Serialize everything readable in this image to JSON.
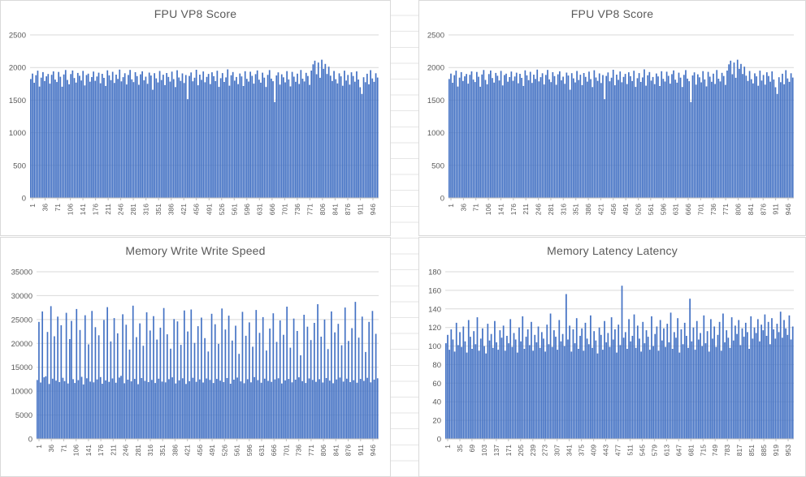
{
  "worksheet": {
    "background": "#ffffff",
    "gridline_color": "#e6e6e6"
  },
  "chart_data": [
    {
      "type": "bar",
      "title": "FPU VP8 Score",
      "bar_color": "#4472C4",
      "axis_text_color": "#595959",
      "gridline_color": "#d9d9d9",
      "ylim": [
        0,
        2500
      ],
      "yticks": [
        0,
        500,
        1000,
        1500,
        2000,
        2500
      ],
      "x_tick_labels": [
        "1",
        "36",
        "71",
        "106",
        "141",
        "176",
        "211",
        "246",
        "281",
        "316",
        "351",
        "386",
        "421",
        "456",
        "491",
        "526",
        "561",
        "596",
        "631",
        "666",
        "701",
        "736",
        "771",
        "806",
        "841",
        "876",
        "911",
        "946"
      ],
      "values": [
        1823,
        1907,
        1766,
        1882,
        1951,
        1708,
        1845,
        1929,
        1793,
        1864,
        1901,
        1752,
        1888,
        1940,
        1815,
        1777,
        1932,
        1858,
        1705,
        1893,
        1961,
        1810,
        1742,
        1899,
        1954,
        1838,
        1769,
        1917,
        1873,
        1801,
        1948,
        1725,
        1884,
        1906,
        1782,
        1853,
        1938,
        1796,
        1862,
        1920,
        1759,
        1903,
        1841,
        1718,
        1957,
        1879,
        1806,
        1934,
        1764,
        1891,
        1825,
        1968,
        1787,
        1852,
        1912,
        1740,
        1886,
        1963,
        1819,
        1776,
        1928,
        1868,
        1735,
        1895,
        1942,
        1804,
        1860,
        1750,
        1922,
        1877,
        1659,
        1913,
        1833,
        1771,
        1946,
        1808,
        1889,
        1730,
        1916,
        1856,
        1783,
        1936,
        1822,
        1700,
        1958,
        1847,
        1795,
        1909,
        1762,
        1884,
        1515,
        1871,
        1924,
        1788,
        1843,
        1965,
        1728,
        1890,
        1811,
        1939,
        1774,
        1856,
        1902,
        1746,
        1927,
        1867,
        1792,
        1950,
        1703,
        1836,
        1914,
        1778,
        1848,
        1971,
        1722,
        1881,
        1930,
        1799,
        1854,
        1745,
        1908,
        1863,
        1716,
        1943,
        1826,
        1785,
        1935,
        1872,
        1753,
        1898,
        1955,
        1814,
        1767,
        1921,
        1844,
        1702,
        1887,
        1960,
        1830,
        1790,
        1470,
        1878,
        1925,
        1738,
        1896,
        1850,
        1772,
        1944,
        1817,
        1710,
        1933,
        1859,
        1781,
        1905,
        1748,
        1962,
        1828,
        1786,
        1918,
        1870,
        1734,
        1953,
        2048,
        2105,
        1897,
        2076,
        1842,
        2120,
        1980,
        2055,
        1900,
        2012,
        1874,
        1793,
        1947,
        1821,
        1756,
        1910,
        1865,
        1720,
        1952,
        1800,
        1885,
        1737,
        1926,
        1869,
        1782,
        1940,
        1816,
        1698,
        1594,
        1851,
        1775,
        1904,
        1742,
        1959,
        1832,
        1780,
        1912,
        1846
      ]
    },
    {
      "type": "bar",
      "title": "FPU VP8 Score",
      "bar_color": "#4472C4",
      "axis_text_color": "#595959",
      "gridline_color": "#d9d9d9",
      "ylim": [
        0,
        2500
      ],
      "yticks": [
        0,
        500,
        1000,
        1500,
        2000,
        2500
      ],
      "x_tick_labels_from": 0,
      "values_from": 0
    },
    {
      "type": "bar",
      "title": "Memory Write Write Speed",
      "bar_color": "#4472C4",
      "axis_text_color": "#595959",
      "gridline_color": "#d9d9d9",
      "ylim": [
        0,
        35000
      ],
      "yticks": [
        0,
        5000,
        10000,
        15000,
        20000,
        25000,
        30000,
        35000
      ],
      "x_tick_labels_from": 0,
      "values": [
        12340,
        24500,
        11800,
        26700,
        12900,
        13100,
        22400,
        11500,
        27800,
        12600,
        21500,
        12200,
        25600,
        11900,
        23800,
        12800,
        12100,
        26400,
        11600,
        20900,
        24700,
        12500,
        11700,
        27200,
        12300,
        22800,
        13000,
        11400,
        25900,
        12700,
        19800,
        12000,
        26800,
        11850,
        23400,
        12450,
        21700,
        12950,
        11550,
        24900,
        12250,
        27600,
        11950,
        20400,
        12650,
        25300,
        11750,
        22100,
        12850,
        13200,
        26100,
        11650,
        23900,
        12400,
        18700,
        12050,
        27900,
        12550,
        21300,
        11450,
        24200,
        12750,
        19500,
        12150,
        26500,
        11900,
        22700,
        12350,
        25700,
        11700,
        20800,
        12600,
        23300,
        12000,
        27400,
        11850,
        21900,
        12500,
        18900,
        12900,
        25100,
        11600,
        24600,
        12250,
        19700,
        12700,
        26900,
        11500,
        22500,
        12100,
        27100,
        12800,
        20100,
        11950,
        23600,
        12450,
        25400,
        11800,
        21100,
        12650,
        18300,
        12350,
        26200,
        11700,
        24000,
        12550,
        19900,
        12200,
        27300,
        11900,
        22900,
        12750,
        25800,
        11550,
        20600,
        12400,
        23700,
        12850,
        17800,
        12050,
        26600,
        11650,
        21600,
        12500,
        24400,
        11850,
        19300,
        12950,
        27000,
        12300,
        22200,
        11750,
        25500,
        12600,
        18500,
        12150,
        23100,
        11950,
        26300,
        12450,
        20300,
        12700,
        24800,
        11600,
        21800,
        12250,
        27700,
        12550,
        19100,
        11850,
        25200,
        12400,
        22600,
        12900,
        17500,
        12100,
        26000,
        11700,
        23500,
        12650,
        20700,
        12350,
        24300,
        11950,
        28200,
        12500,
        21400,
        11800,
        25000,
        12750,
        18800,
        12200,
        26700,
        11650,
        22300,
        12450,
        24100,
        12850,
        19600,
        12000,
        27500,
        12600,
        20500,
        11900,
        23200,
        12300,
        28700,
        11750,
        21200,
        12550,
        25600,
        12150,
        18200,
        12800,
        24500,
        11850,
        26800,
        12400,
        22000,
        12700
      ]
    },
    {
      "type": "bar",
      "title": "Memory Latency Latency",
      "bar_color": "#4472C4",
      "axis_text_color": "#595959",
      "gridline_color": "#d9d9d9",
      "ylim": [
        0,
        180
      ],
      "yticks": [
        0,
        20,
        40,
        60,
        80,
        100,
        120,
        140,
        160,
        180
      ],
      "x_tick_labels": [
        "1",
        "35",
        "69",
        "103",
        "137",
        "171",
        "205",
        "239",
        "273",
        "307",
        "341",
        "375",
        "409",
        "443",
        "477",
        "511",
        "545",
        "579",
        "613",
        "647",
        "681",
        "715",
        "749",
        "783",
        "817",
        "851",
        "885",
        "919",
        "953"
      ],
      "values": [
        103,
        112,
        96,
        118,
        107,
        94,
        125,
        101,
        115,
        99,
        121,
        105,
        93,
        128,
        110,
        97,
        116,
        102,
        131,
        95,
        108,
        119,
        100,
        92,
        124,
        106,
        113,
        98,
        127,
        104,
        96,
        117,
        109,
        122,
        95,
        111,
        103,
        129,
        99,
        114,
        107,
        93,
        120,
        105,
        132,
        97,
        110,
        118,
        101,
        126,
        95,
        112,
        104,
        121,
        98,
        115,
        108,
        94,
        123,
        102,
        135,
        99,
        117,
        110,
        96,
        128,
        105,
        113,
        100,
        156,
        107,
        122,
        94,
        118,
        103,
        130,
        97,
        111,
        119,
        95,
        125,
        108,
        102,
        133,
        98,
        116,
        106,
        92,
        120,
        112,
        96,
        127,
        104,
        114,
        99,
        131,
        107,
        118,
        93,
        123,
        101,
        165,
        109,
        115,
        97,
        129,
        105,
        111,
        134,
        98,
        122,
        108,
        94,
        126,
        103,
        117,
        110,
        96,
        132,
        100,
        113,
        121,
        95,
        128,
        106,
        119,
        99,
        124,
        104,
        136,
        97,
        115,
        109,
        130,
        93,
        118,
        102,
        125,
        111,
        98,
        151,
        105,
        120,
        96,
        127,
        107,
        114,
        100,
        133,
        103,
        116,
        94,
        129,
        108,
        121,
        99,
        112,
        126,
        95,
        135,
        104,
        117,
        109,
        98,
        131,
        106,
        122,
        113,
        128,
        101,
        119,
        110,
        125,
        115,
        97,
        132,
        108,
        120,
        114,
        129,
        105,
        123,
        117,
        134,
        111,
        126,
        102,
        130,
        118,
        108,
        124,
        115,
        137,
        109,
        128,
        119,
        112,
        133,
        107,
        121
      ]
    }
  ]
}
